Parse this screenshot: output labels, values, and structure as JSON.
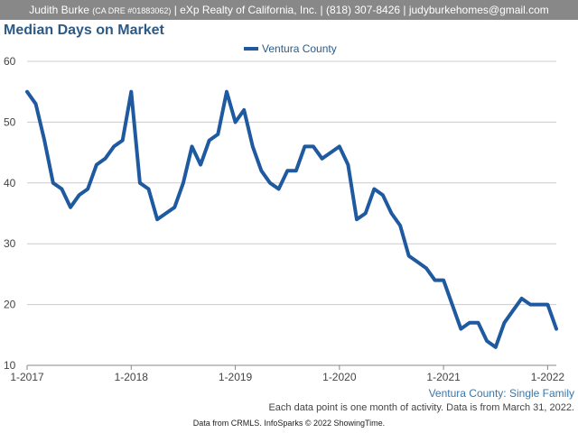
{
  "header": {
    "agent": "Judith Burke",
    "license": "(CA DRE #01883062)",
    "details": "| eXp Realty of California, Inc. | (818) 307-8426 | judyburkehomes@gmail.com"
  },
  "subtitle": "Ventura County: Single Family",
  "note": "Each data point is one month of activity. Data is from March 31, 2022.",
  "footer": "Data from CRMLS. InfoSparks © 2022 ShowingTime.",
  "chart_data": {
    "type": "line",
    "title": "Median Days on Market",
    "legend_position": "top-center",
    "grid": true,
    "ylim": [
      10,
      60
    ],
    "y_ticks": [
      10,
      20,
      30,
      40,
      50,
      60
    ],
    "x_start": "2017-01",
    "x_tick_labels": [
      "1-2017",
      "1-2018",
      "1-2019",
      "1-2020",
      "1-2021",
      "1-2022"
    ],
    "series": [
      {
        "name": "Ventura County",
        "color": "#1f5aa0",
        "values": [
          55,
          53,
          47,
          40,
          39,
          36,
          38,
          39,
          43,
          44,
          46,
          47,
          55,
          40,
          39,
          34,
          35,
          36,
          40,
          46,
          43,
          47,
          48,
          55,
          50,
          52,
          46,
          42,
          40,
          39,
          42,
          42,
          46,
          46,
          44,
          45,
          46,
          43,
          34,
          35,
          39,
          38,
          35,
          33,
          28,
          27,
          26,
          24,
          24,
          20,
          16,
          17,
          17,
          14,
          13,
          17,
          19,
          21,
          20,
          20,
          20,
          16
        ]
      }
    ]
  }
}
